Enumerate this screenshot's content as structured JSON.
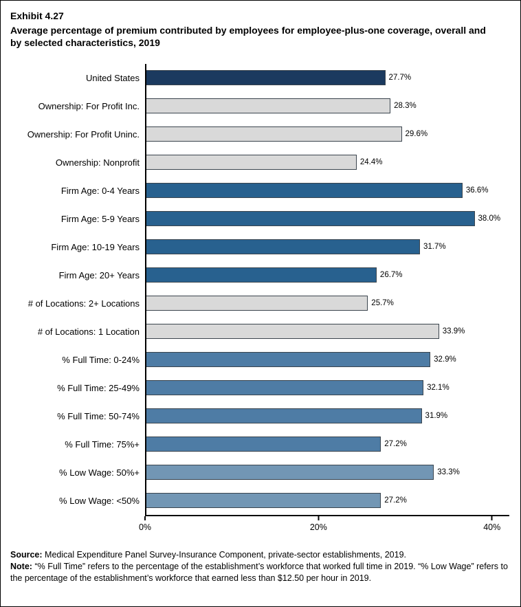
{
  "header": {
    "exhibit": "Exhibit 4.27",
    "title": "Average percentage of premium contributed by employees for employee-plus-one coverage, overall and by selected characteristics, 2019"
  },
  "chart_data": {
    "type": "bar",
    "orientation": "horizontal",
    "title": "Average percentage of premium contributed by employees for employee-plus-one coverage, overall and by selected characteristics, 2019",
    "xlabel": "",
    "ylabel": "",
    "xlim": [
      0,
      42
    ],
    "x_ticks": [
      "0%",
      "20%",
      "40%"
    ],
    "x_tick_values": [
      0,
      20,
      40
    ],
    "grid": false,
    "legend": "none",
    "rows": [
      {
        "label": "United States",
        "value": 27.7,
        "display": "27.7%",
        "group": "overall"
      },
      {
        "label": "Ownership: For Profit Inc.",
        "value": 28.3,
        "display": "28.3%",
        "group": "ownership"
      },
      {
        "label": "Ownership: For Profit Uninc.",
        "value": 29.6,
        "display": "29.6%",
        "group": "ownership"
      },
      {
        "label": "Ownership: Nonprofit",
        "value": 24.4,
        "display": "24.4%",
        "group": "ownership"
      },
      {
        "label": "Firm Age: 0-4 Years",
        "value": 36.6,
        "display": "36.6%",
        "group": "firm_age"
      },
      {
        "label": "Firm Age: 5-9 Years",
        "value": 38.0,
        "display": "38.0%",
        "group": "firm_age"
      },
      {
        "label": "Firm Age: 10-19 Years",
        "value": 31.7,
        "display": "31.7%",
        "group": "firm_age"
      },
      {
        "label": "Firm Age: 20+ Years",
        "value": 26.7,
        "display": "26.7%",
        "group": "firm_age"
      },
      {
        "label": "# of Locations: 2+ Locations",
        "value": 25.7,
        "display": "25.7%",
        "group": "locations"
      },
      {
        "label": "# of Locations: 1 Location",
        "value": 33.9,
        "display": "33.9%",
        "group": "locations"
      },
      {
        "label": "% Full Time: 0-24%",
        "value": 32.9,
        "display": "32.9%",
        "group": "full_time"
      },
      {
        "label": "% Full Time: 25-49%",
        "value": 32.1,
        "display": "32.1%",
        "group": "full_time"
      },
      {
        "label": "% Full Time: 50-74%",
        "value": 31.9,
        "display": "31.9%",
        "group": "full_time"
      },
      {
        "label": "% Full Time: 75%+",
        "value": 27.2,
        "display": "27.2%",
        "group": "full_time"
      },
      {
        "label": "% Low Wage: 50%+",
        "value": 33.3,
        "display": "33.3%",
        "group": "low_wage"
      },
      {
        "label": "% Low Wage: <50%",
        "value": 27.2,
        "display": "27.2%",
        "group": "low_wage"
      }
    ],
    "colors": {
      "overall": "#1b3a5f",
      "ownership": "#d9d9d9",
      "firm_age": "#28618f",
      "locations": "#d9d9d9",
      "full_time": "#4e7ca5",
      "low_wage": "#7296b4"
    },
    "bar_border_color": "#3a444d"
  },
  "footer": {
    "source_label": "Source:",
    "source_text": "Medical Expenditure Panel Survey-Insurance Component, private-sector establishments, 2019.",
    "note_label": "Note:",
    "note_text": "“% Full Time” refers to the percentage of the establishment’s workforce that worked full time in 2019. “% Low Wage” refers to the percentage of the establishment’s workforce that earned less than $12.50 per hour in 2019."
  }
}
